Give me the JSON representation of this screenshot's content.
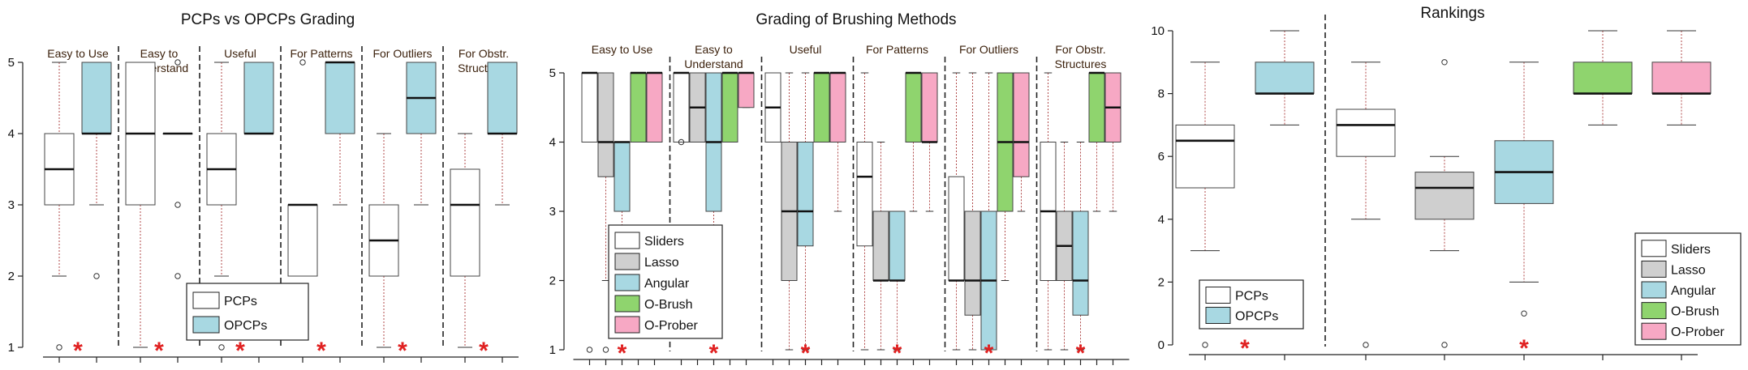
{
  "colors": {
    "PCPs": "#ffffff",
    "OPCPs": "#a8d8e2",
    "Sliders": "#ffffff",
    "Lasso": "#cfcfcf",
    "Angular": "#a8d8e2",
    "O-Brush": "#8fd46e",
    "O-Prober": "#f7a8c4",
    "whisker": "#b04a4a",
    "star": "#e02020",
    "divider": "#222222"
  },
  "chart_data": [
    {
      "type": "box",
      "title": "PCPs vs OPCPs Grading",
      "ylim": [
        1,
        5
      ],
      "yticks": [
        1,
        2,
        3,
        4,
        5
      ],
      "legend": {
        "position": "bottom-right",
        "entries": [
          "PCPs",
          "OPCPs"
        ]
      },
      "groups": [
        {
          "label": "Easy to Use",
          "star": true,
          "boxes": [
            {
              "series": "PCPs",
              "min": 2,
              "q1": 3,
              "median": 3.5,
              "q3": 4,
              "max": 5,
              "outliers": [
                1
              ]
            },
            {
              "series": "OPCPs",
              "min": 3,
              "q1": 4,
              "median": 4,
              "q3": 5,
              "max": 5,
              "outliers": [
                2
              ]
            }
          ]
        },
        {
          "label": "Easy to Understand",
          "star": true,
          "boxes": [
            {
              "series": "PCPs",
              "min": 1,
              "q1": 3,
              "median": 4,
              "q3": 5,
              "max": 5,
              "outliers": []
            },
            {
              "series": "OPCPs",
              "min": 4,
              "q1": 4,
              "median": 4,
              "q3": 4,
              "max": 4,
              "outliers": [
                5,
                3,
                2
              ]
            }
          ]
        },
        {
          "label": "Useful",
          "star": true,
          "boxes": [
            {
              "series": "PCPs",
              "min": 2,
              "q1": 3,
              "median": 3.5,
              "q3": 4,
              "max": 5,
              "outliers": [
                1
              ]
            },
            {
              "series": "OPCPs",
              "min": 4,
              "q1": 4,
              "median": 4,
              "q3": 5,
              "max": 5,
              "outliers": []
            }
          ]
        },
        {
          "label": "For Patterns",
          "star": true,
          "boxes": [
            {
              "series": "PCPs",
              "min": 2,
              "q1": 2,
              "median": 3,
              "q3": 3,
              "max": 3,
              "outliers": [
                5
              ]
            },
            {
              "series": "OPCPs",
              "min": 3,
              "q1": 4,
              "median": 5,
              "q3": 5,
              "max": 5,
              "outliers": []
            }
          ]
        },
        {
          "label": "For Outliers",
          "star": true,
          "boxes": [
            {
              "series": "PCPs",
              "min": 1,
              "q1": 2,
              "median": 2.5,
              "q3": 3,
              "max": 4,
              "outliers": []
            },
            {
              "series": "OPCPs",
              "min": 3,
              "q1": 4,
              "median": 4.5,
              "q3": 5,
              "max": 5,
              "outliers": []
            }
          ]
        },
        {
          "label": "For Obstr. Structures",
          "star": true,
          "boxes": [
            {
              "series": "PCPs",
              "min": 1,
              "q1": 2,
              "median": 3,
              "q3": 3.5,
              "max": 4,
              "outliers": []
            },
            {
              "series": "OPCPs",
              "min": 3,
              "q1": 4,
              "median": 4,
              "q3": 5,
              "max": 5,
              "outliers": []
            }
          ]
        }
      ]
    },
    {
      "type": "box",
      "title": "Grading of Brushing Methods",
      "ylim": [
        1,
        5
      ],
      "yticks": [
        1,
        2,
        3,
        4,
        5
      ],
      "legend": {
        "position": "bottom-left",
        "entries": [
          "Sliders",
          "Lasso",
          "Angular",
          "O-Brush",
          "O-Prober"
        ]
      },
      "groups": [
        {
          "label": "Easy to Use",
          "star": true,
          "boxes": [
            {
              "series": "Sliders",
              "min": 4,
              "q1": 4,
              "median": 5,
              "q3": 5,
              "max": 5,
              "outliers": [
                1
              ]
            },
            {
              "series": "Lasso",
              "min": 2,
              "q1": 3.5,
              "median": 4,
              "q3": 5,
              "max": 5,
              "outliers": [
                1
              ]
            },
            {
              "series": "Angular",
              "min": 2,
              "q1": 3,
              "median": 4,
              "q3": 4,
              "max": 4,
              "outliers": []
            },
            {
              "series": "O-Brush",
              "min": 4,
              "q1": 4,
              "median": 5,
              "q3": 5,
              "max": 5,
              "outliers": []
            },
            {
              "series": "O-Prober",
              "min": 4,
              "q1": 4,
              "median": 5,
              "q3": 5,
              "max": 5,
              "outliers": []
            }
          ]
        },
        {
          "label": "Easy to Understand",
          "star": true,
          "boxes": [
            {
              "series": "Sliders",
              "min": 4,
              "q1": 4,
              "median": 5,
              "q3": 5,
              "max": 5,
              "outliers": [
                4
              ]
            },
            {
              "series": "Lasso",
              "min": 4,
              "q1": 4,
              "median": 4.5,
              "q3": 5,
              "max": 5,
              "outliers": []
            },
            {
              "series": "Angular",
              "min": 2,
              "q1": 3,
              "median": 4,
              "q3": 5,
              "max": 5,
              "outliers": []
            },
            {
              "series": "O-Brush",
              "min": 4,
              "q1": 4,
              "median": 5,
              "q3": 5,
              "max": 5,
              "outliers": []
            },
            {
              "series": "O-Prober",
              "min": 4.5,
              "q1": 4.5,
              "median": 5,
              "q3": 5,
              "max": 5,
              "outliers": []
            }
          ]
        },
        {
          "label": "Useful",
          "star": true,
          "boxes": [
            {
              "series": "Sliders",
              "min": 4,
              "q1": 4,
              "median": 4.5,
              "q3": 5,
              "max": 5,
              "outliers": []
            },
            {
              "series": "Lasso",
              "min": 1,
              "q1": 2,
              "median": 3,
              "q3": 4,
              "max": 5,
              "outliers": []
            },
            {
              "series": "Angular",
              "min": 1,
              "q1": 2.5,
              "median": 3,
              "q3": 4,
              "max": 5,
              "outliers": []
            },
            {
              "series": "O-Brush",
              "min": 4,
              "q1": 4,
              "median": 5,
              "q3": 5,
              "max": 5,
              "outliers": []
            },
            {
              "series": "O-Prober",
              "min": 3,
              "q1": 4,
              "median": 5,
              "q3": 5,
              "max": 5,
              "outliers": []
            }
          ]
        },
        {
          "label": "For Patterns",
          "star": true,
          "boxes": [
            {
              "series": "Sliders",
              "min": 1,
              "q1": 2.5,
              "median": 3.5,
              "q3": 4,
              "max": 5,
              "outliers": []
            },
            {
              "series": "Lasso",
              "min": 1,
              "q1": 2,
              "median": 2,
              "q3": 3,
              "max": 4,
              "outliers": []
            },
            {
              "series": "Angular",
              "min": 1,
              "q1": 2,
              "median": 2,
              "q3": 3,
              "max": 3,
              "outliers": []
            },
            {
              "series": "O-Brush",
              "min": 3,
              "q1": 4,
              "median": 5,
              "q3": 5,
              "max": 5,
              "outliers": []
            },
            {
              "series": "O-Prober",
              "min": 3,
              "q1": 4,
              "median": 4,
              "q3": 5,
              "max": 5,
              "outliers": []
            }
          ]
        },
        {
          "label": "For Outliers",
          "star": true,
          "boxes": [
            {
              "series": "Sliders",
              "min": 1,
              "q1": 2,
              "median": 2,
              "q3": 3.5,
              "max": 5,
              "outliers": []
            },
            {
              "series": "Lasso",
              "min": 1,
              "q1": 1.5,
              "median": 2,
              "q3": 3,
              "max": 5,
              "outliers": []
            },
            {
              "series": "Angular",
              "min": 1,
              "q1": 1,
              "median": 2,
              "q3": 3,
              "max": 5,
              "outliers": []
            },
            {
              "series": "O-Brush",
              "min": 2,
              "q1": 3,
              "median": 4,
              "q3": 5,
              "max": 5,
              "outliers": []
            },
            {
              "series": "O-Prober",
              "min": 3,
              "q1": 3.5,
              "median": 4,
              "q3": 5,
              "max": 5,
              "outliers": []
            }
          ]
        },
        {
          "label": "For Obstr. Structures",
          "star": true,
          "boxes": [
            {
              "series": "Sliders",
              "min": 1,
              "q1": 2,
              "median": 3,
              "q3": 4,
              "max": 5,
              "outliers": []
            },
            {
              "series": "Lasso",
              "min": 1,
              "q1": 2,
              "median": 2.5,
              "q3": 3,
              "max": 4,
              "outliers": []
            },
            {
              "series": "Angular",
              "min": 1,
              "q1": 1.5,
              "median": 2,
              "q3": 3,
              "max": 4,
              "outliers": []
            },
            {
              "series": "O-Brush",
              "min": 3,
              "q1": 4,
              "median": 5,
              "q3": 5,
              "max": 5,
              "outliers": []
            },
            {
              "series": "O-Prober",
              "min": 3,
              "q1": 4,
              "median": 4.5,
              "q3": 5,
              "max": 5,
              "outliers": []
            }
          ]
        }
      ]
    },
    {
      "type": "box",
      "title": "Rankings",
      "ylim": [
        0,
        10
      ],
      "yticks": [
        0,
        2,
        4,
        6,
        8,
        10
      ],
      "legends": [
        {
          "position": "bottom-left",
          "entries": [
            "PCPs",
            "OPCPs"
          ]
        },
        {
          "position": "bottom-right",
          "entries": [
            "Sliders",
            "Lasso",
            "Angular",
            "O-Brush",
            "O-Prober"
          ]
        }
      ],
      "groups": [
        {
          "label": "",
          "star": true,
          "boxes": [
            {
              "series": "PCPs",
              "min": 3,
              "q1": 5,
              "median": 6.5,
              "q3": 7,
              "max": 9,
              "outliers": [
                0
              ]
            },
            {
              "series": "OPCPs",
              "min": 7,
              "q1": 8,
              "median": 8,
              "q3": 9,
              "max": 10,
              "outliers": []
            }
          ]
        },
        {
          "label": "",
          "star": true,
          "boxes": [
            {
              "series": "Sliders",
              "min": 4,
              "q1": 6,
              "median": 7,
              "q3": 7.5,
              "max": 9,
              "outliers": [
                0
              ]
            },
            {
              "series": "Lasso",
              "min": 3,
              "q1": 4,
              "median": 5,
              "q3": 5.5,
              "max": 6,
              "outliers": [
                9,
                0
              ]
            },
            {
              "series": "Angular",
              "min": 2,
              "q1": 4.5,
              "median": 5.5,
              "q3": 6.5,
              "max": 9,
              "outliers": [
                1
              ]
            },
            {
              "series": "O-Brush",
              "min": 7,
              "q1": 8,
              "median": 8,
              "q3": 9,
              "max": 10,
              "outliers": []
            },
            {
              "series": "O-Prober",
              "min": 7,
              "q1": 8,
              "median": 8,
              "q3": 9,
              "max": 10,
              "outliers": []
            }
          ]
        }
      ]
    }
  ]
}
